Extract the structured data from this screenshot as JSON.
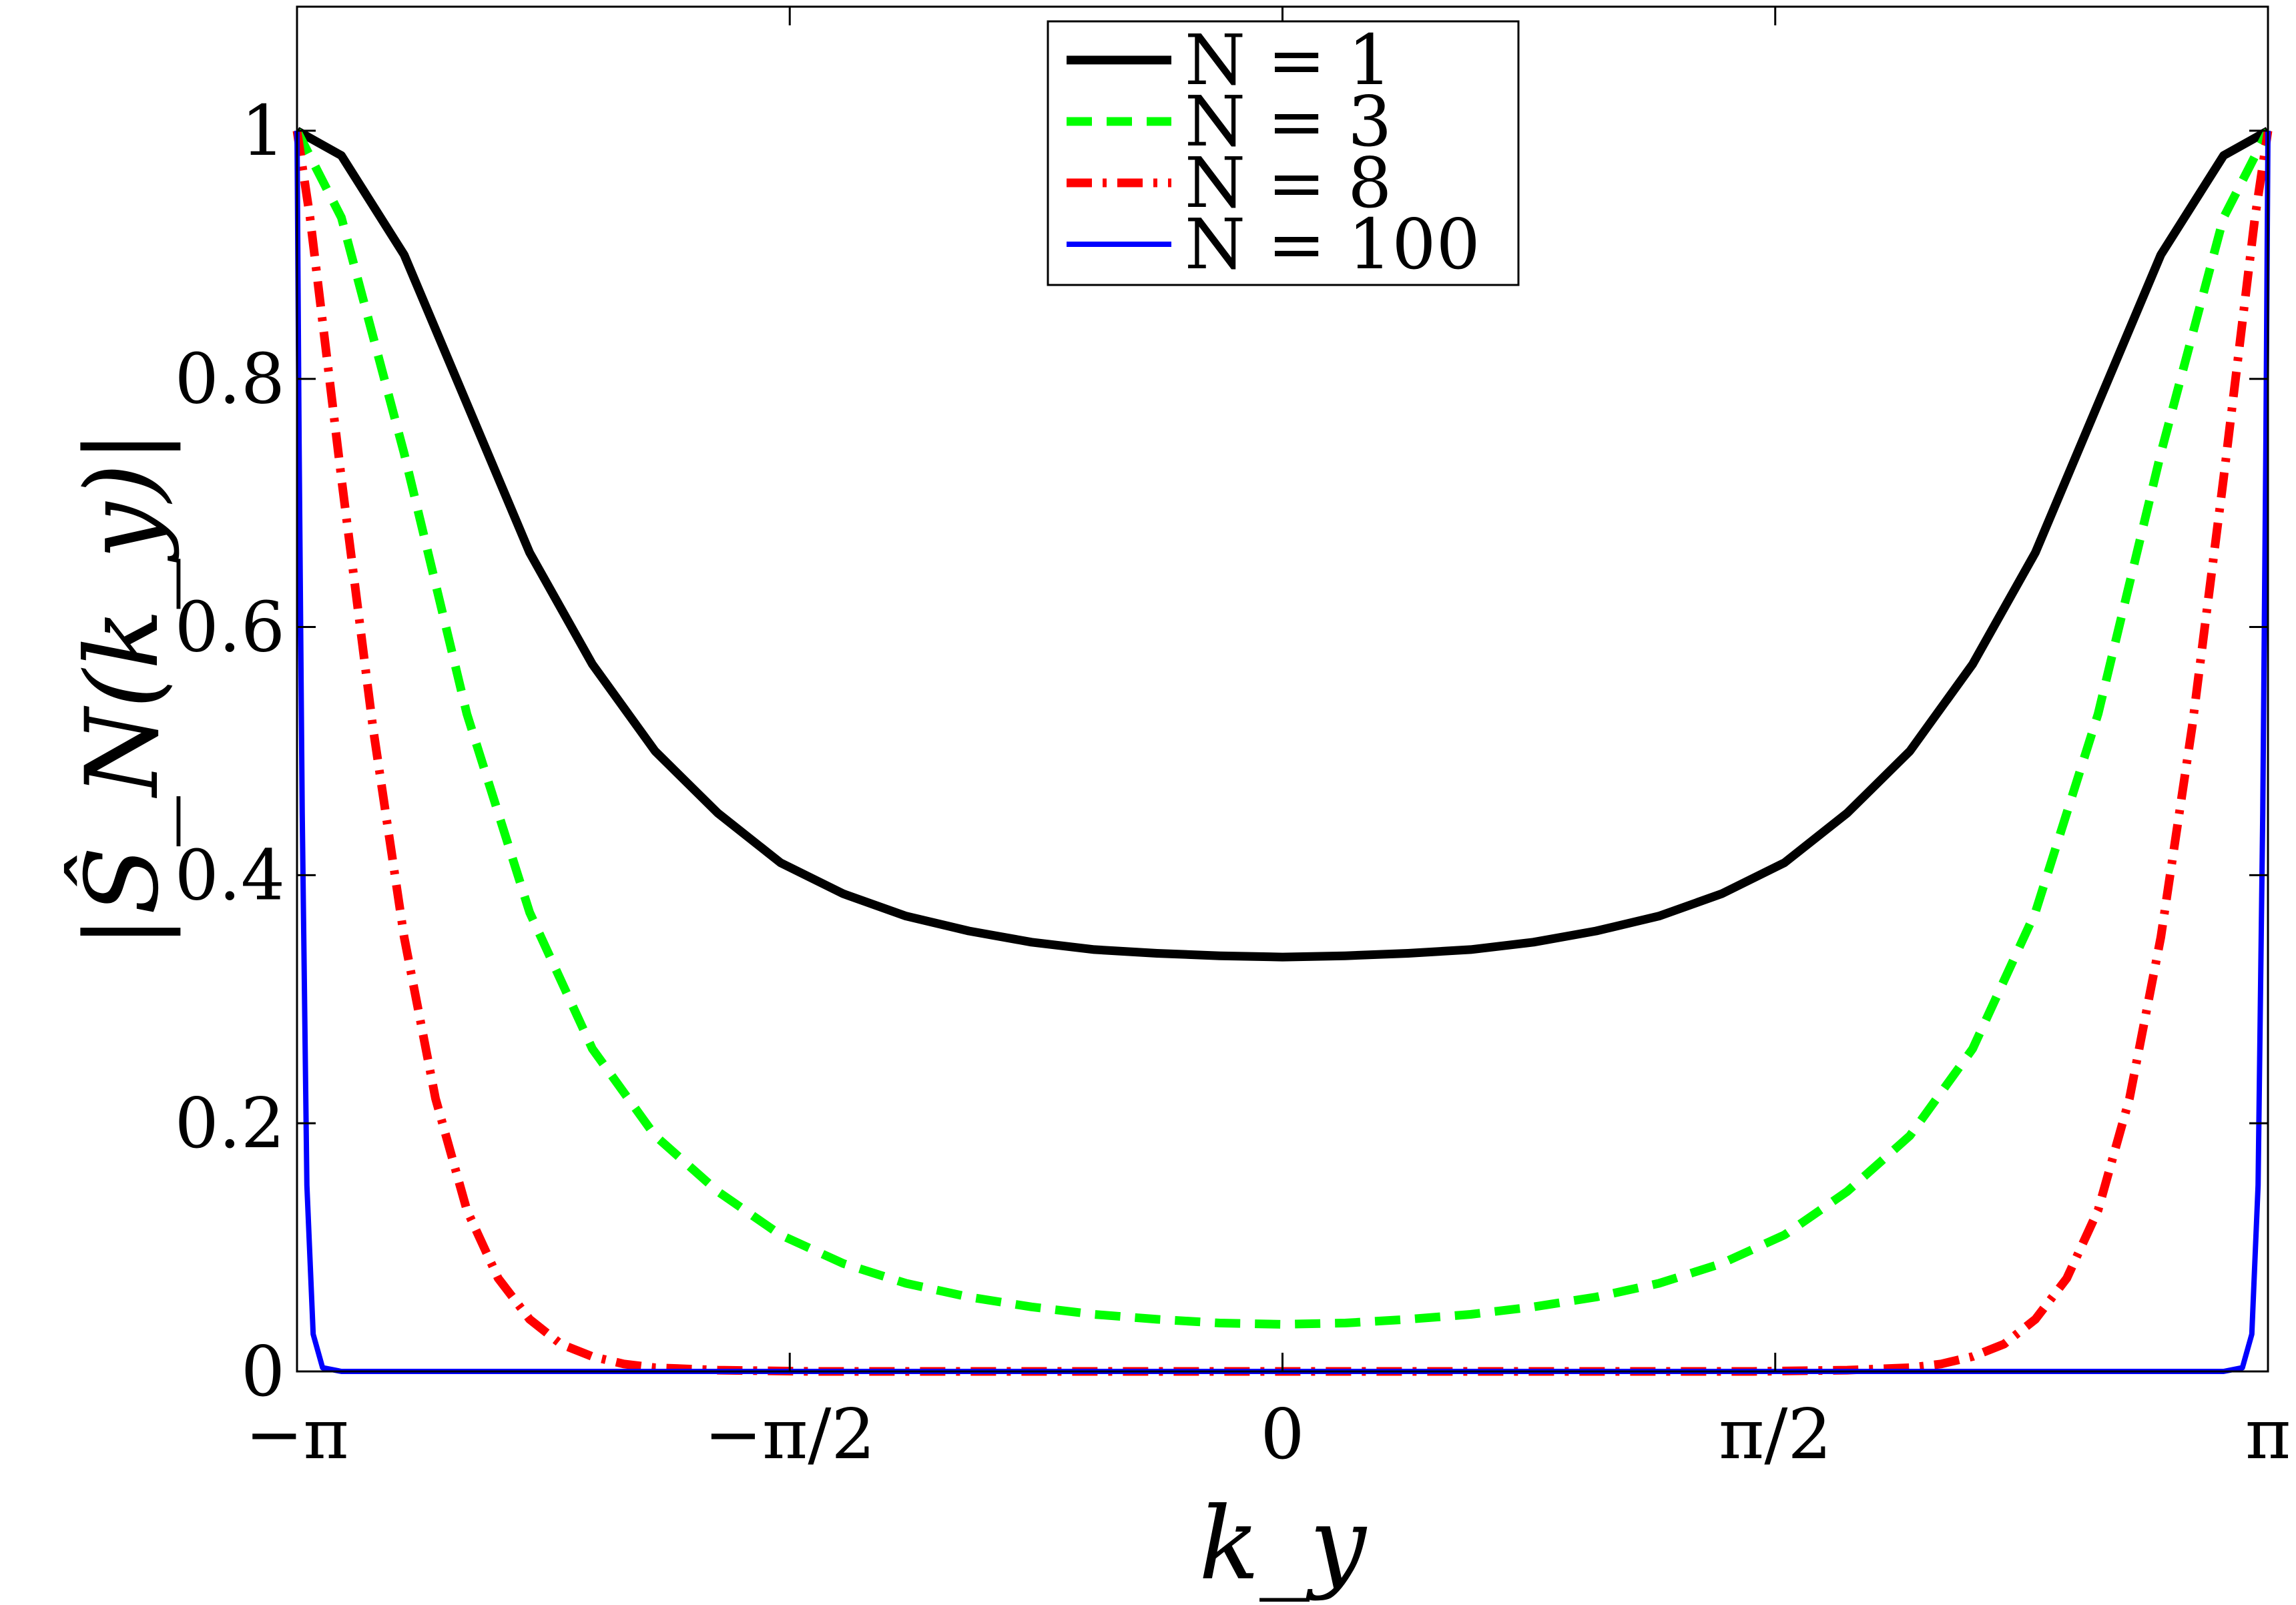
{
  "chart_data": {
    "type": "line",
    "xlabel": "k_y",
    "ylabel": "|Ŝ_N(k_y)|",
    "xlim": [
      -3.14159,
      3.14159
    ],
    "ylim": [
      0,
      1.1
    ],
    "x_ticks": [
      {
        "value": -3.14159,
        "label": "−π"
      },
      {
        "value": -1.5708,
        "label": "−π/2"
      },
      {
        "value": 0,
        "label": "0"
      },
      {
        "value": 1.5708,
        "label": "π/2"
      },
      {
        "value": 3.14159,
        "label": "π"
      }
    ],
    "y_ticks": [
      {
        "value": 0,
        "label": "0"
      },
      {
        "value": 0.2,
        "label": "0.2"
      },
      {
        "value": 0.4,
        "label": "0.4"
      },
      {
        "value": 0.6,
        "label": "0.6"
      },
      {
        "value": 0.8,
        "label": "0.8"
      },
      {
        "value": 1,
        "label": "1"
      }
    ],
    "grid": false,
    "legend_position": "top-center",
    "series": [
      {
        "name": "N = 1",
        "color": "#000000",
        "style": "solid",
        "x": [
          -3.1416,
          -3.0,
          -2.8,
          -2.6,
          -2.4,
          -2.2,
          -2.0,
          -1.8,
          -1.6,
          -1.4,
          -1.2,
          -1.0,
          -0.8,
          -0.6,
          -0.4,
          -0.2,
          0.0,
          0.2,
          0.4,
          0.6,
          0.8,
          1.0,
          1.2,
          1.4,
          1.6,
          1.8,
          2.0,
          2.2,
          2.4,
          2.6,
          2.8,
          3.0,
          3.1416
        ],
        "values": [
          1.0,
          0.98,
          0.9,
          0.78,
          0.66,
          0.57,
          0.5,
          0.45,
          0.41,
          0.385,
          0.367,
          0.355,
          0.346,
          0.34,
          0.337,
          0.335,
          0.334,
          0.335,
          0.337,
          0.34,
          0.346,
          0.355,
          0.367,
          0.385,
          0.41,
          0.45,
          0.5,
          0.57,
          0.66,
          0.78,
          0.9,
          0.98,
          1.0
        ]
      },
      {
        "name": "N = 3",
        "color": "#00ff00",
        "style": "dashed",
        "x": [
          -3.1416,
          -3.0,
          -2.8,
          -2.6,
          -2.4,
          -2.2,
          -2.0,
          -1.8,
          -1.6,
          -1.4,
          -1.2,
          -1.0,
          -0.8,
          -0.6,
          -0.4,
          -0.2,
          0.0,
          0.2,
          0.4,
          0.6,
          0.8,
          1.0,
          1.2,
          1.4,
          1.6,
          1.8,
          2.0,
          2.2,
          2.4,
          2.6,
          2.8,
          3.0,
          3.1416
        ],
        "values": [
          1.0,
          0.93,
          0.74,
          0.53,
          0.37,
          0.26,
          0.19,
          0.145,
          0.11,
          0.087,
          0.071,
          0.06,
          0.052,
          0.046,
          0.042,
          0.039,
          0.038,
          0.039,
          0.042,
          0.046,
          0.052,
          0.06,
          0.071,
          0.087,
          0.11,
          0.145,
          0.19,
          0.26,
          0.37,
          0.53,
          0.74,
          0.93,
          1.0
        ]
      },
      {
        "name": "N = 8",
        "color": "#ff0000",
        "style": "dashdot",
        "x": [
          -3.1416,
          -3.1,
          -3.0,
          -2.9,
          -2.8,
          -2.7,
          -2.6,
          -2.5,
          -2.4,
          -2.3,
          -2.2,
          -2.1,
          -2.0,
          -1.8,
          -1.5,
          -1.0,
          0.0,
          1.0,
          1.5,
          1.8,
          2.0,
          2.1,
          2.2,
          2.3,
          2.4,
          2.5,
          2.6,
          2.7,
          2.8,
          2.9,
          3.0,
          3.1,
          3.1416
        ],
        "values": [
          1.0,
          0.93,
          0.72,
          0.52,
          0.35,
          0.22,
          0.13,
          0.075,
          0.042,
          0.022,
          0.012,
          0.006,
          0.003,
          0.001,
          0.0,
          0.0,
          0.0,
          0.0,
          0.0,
          0.001,
          0.003,
          0.006,
          0.012,
          0.022,
          0.042,
          0.075,
          0.13,
          0.22,
          0.35,
          0.52,
          0.72,
          0.93,
          1.0
        ]
      },
      {
        "name": "N = 100",
        "color": "#0000ff",
        "style": "solid",
        "x": [
          -3.1416,
          -3.135,
          -3.125,
          -3.11,
          -3.09,
          -3.06,
          -3.0,
          -2.0,
          0.0,
          2.0,
          3.0,
          3.06,
          3.09,
          3.11,
          3.125,
          3.135,
          3.1416
        ],
        "values": [
          1.0,
          0.75,
          0.45,
          0.15,
          0.03,
          0.003,
          0.0,
          0.0,
          0.0,
          0.0,
          0.0,
          0.003,
          0.03,
          0.15,
          0.45,
          0.75,
          1.0
        ]
      }
    ]
  }
}
